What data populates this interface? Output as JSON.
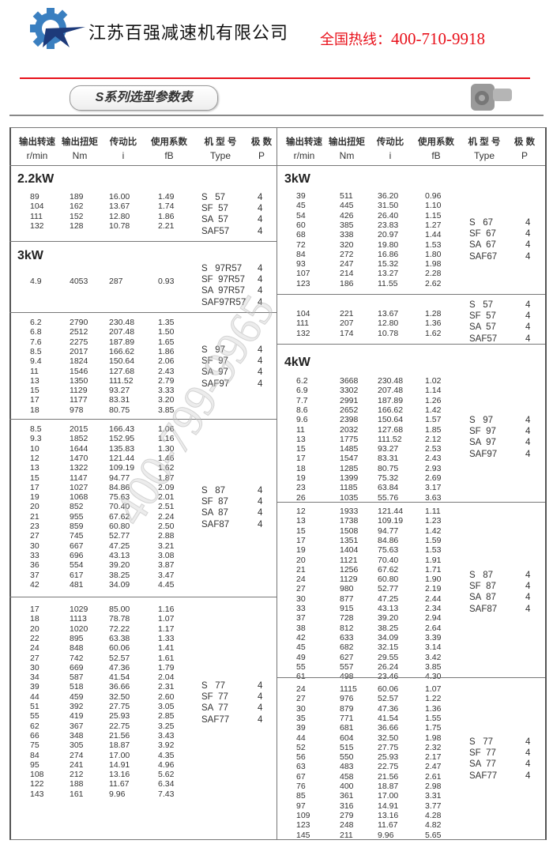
{
  "header": {
    "company_name": "江苏百强减速机有限公司",
    "hotline_label": "全国热线：",
    "hotline_number": "400-710-9918",
    "accent_color": "#e8101a",
    "logo_color": "#3a7fc0"
  },
  "title": "S系列选型参数表",
  "watermark": "400-799-9965",
  "columns": {
    "cn": [
      "输出转速",
      "输出扭矩",
      "传动比",
      "使用系数",
      "机 型 号",
      "极 数"
    ],
    "en": [
      "r/min",
      "Nm",
      "i",
      "fB",
      "Type",
      "P"
    ]
  },
  "left_sections": [
    {
      "power": "2.2kW",
      "rows": [
        [
          "89",
          "189",
          "16.00",
          "1.49"
        ],
        [
          "104",
          "162",
          "13.67",
          "1.74"
        ],
        [
          "111",
          "152",
          "12.80",
          "1.86"
        ],
        [
          "132",
          "128",
          "10.78",
          "2.21"
        ]
      ],
      "types": [
        [
          "S   57",
          "4"
        ],
        [
          "SF  57",
          "4"
        ],
        [
          "SA  57",
          "4"
        ],
        [
          "SAF57",
          "4"
        ]
      ]
    },
    {
      "power": "3kW",
      "rows": [
        [
          "4.9",
          "4053",
          "287",
          "0.93"
        ]
      ],
      "types": [
        [
          "S   97R57",
          "4"
        ],
        [
          "SF  97R57",
          "4"
        ],
        [
          "SA  97R57",
          "4"
        ],
        [
          "SAF97R57",
          "4"
        ]
      ]
    },
    {
      "power": "",
      "rows": [
        [
          "6.2",
          "2790",
          "230.48",
          "1.35"
        ],
        [
          "6.8",
          "2512",
          "207.48",
          "1.50"
        ],
        [
          "7.6",
          "2275",
          "187.89",
          "1.65"
        ],
        [
          "8.5",
          "2017",
          "166.62",
          "1.86"
        ],
        [
          "9.4",
          "1824",
          "150.64",
          "2.06"
        ],
        [
          "11",
          "1546",
          "127.68",
          "2.43"
        ],
        [
          "13",
          "1350",
          "111.52",
          "2.79"
        ],
        [
          "15",
          "1129",
          "93.27",
          "3.33"
        ],
        [
          "17",
          "1177",
          "83.31",
          "3.20"
        ],
        [
          "18",
          "978",
          "80.75",
          "3.85"
        ]
      ],
      "types": [
        [
          "S   97",
          "4"
        ],
        [
          "SF  97",
          "4"
        ],
        [
          "SA  97",
          "4"
        ],
        [
          "SAF97",
          "4"
        ]
      ]
    },
    {
      "power": "",
      "rows": [
        [
          "8.5",
          "2015",
          "166.43",
          "1.06"
        ],
        [
          "9.3",
          "1852",
          "152.95",
          "1.16"
        ],
        [
          "10",
          "1644",
          "135.83",
          "1.30"
        ],
        [
          "12",
          "1470",
          "121.44",
          "1.46"
        ],
        [
          "13",
          "1322",
          "109.19",
          "1.62"
        ],
        [
          "15",
          "1147",
          "94.77",
          "1.87"
        ],
        [
          "17",
          "1027",
          "84.86",
          "2.09"
        ],
        [
          "19",
          "1068",
          "75.63",
          "2.01"
        ],
        [
          "20",
          "852",
          "70.40",
          "2.51"
        ],
        [
          "21",
          "955",
          "67.62",
          "2.24"
        ],
        [
          "23",
          "859",
          "60.80",
          "2.50"
        ],
        [
          "27",
          "745",
          "52.77",
          "2.88"
        ],
        [
          "30",
          "667",
          "47.25",
          "3.21"
        ],
        [
          "33",
          "696",
          "43.13",
          "3.08"
        ],
        [
          "36",
          "554",
          "39.20",
          "3.87"
        ],
        [
          "37",
          "617",
          "38.25",
          "3.47"
        ],
        [
          "42",
          "481",
          "34.09",
          "4.45"
        ]
      ],
      "types": [
        [
          "S   87",
          "4"
        ],
        [
          "SF  87",
          "4"
        ],
        [
          "SA  87",
          "4"
        ],
        [
          "SAF87",
          "4"
        ]
      ]
    },
    {
      "power": "",
      "rows": [
        [
          "17",
          "1029",
          "85.00",
          "1.16"
        ],
        [
          "18",
          "1113",
          "78.78",
          "1.07"
        ],
        [
          "20",
          "1020",
          "72.22",
          "1.17"
        ],
        [
          "22",
          "895",
          "63.38",
          "1.33"
        ],
        [
          "24",
          "848",
          "60.06",
          "1.41"
        ],
        [
          "27",
          "742",
          "52.57",
          "1.61"
        ],
        [
          "30",
          "669",
          "47.36",
          "1.79"
        ],
        [
          "34",
          "587",
          "41.54",
          "2.04"
        ],
        [
          "39",
          "518",
          "36.66",
          "2.31"
        ],
        [
          "44",
          "459",
          "32.50",
          "2.60"
        ],
        [
          "51",
          "392",
          "27.75",
          "3.05"
        ],
        [
          "55",
          "419",
          "25.93",
          "2.85"
        ],
        [
          "62",
          "367",
          "22.75",
          "3.25"
        ],
        [
          "66",
          "348",
          "21.56",
          "3.43"
        ],
        [
          "75",
          "305",
          "18.87",
          "3.92"
        ],
        [
          "84",
          "274",
          "17.00",
          "4.35"
        ],
        [
          "95",
          "241",
          "14.91",
          "4.96"
        ],
        [
          "108",
          "212",
          "13.16",
          "5.62"
        ],
        [
          "122",
          "188",
          "11.67",
          "6.34"
        ],
        [
          "143",
          "161",
          "9.96",
          "7.43"
        ]
      ],
      "types": [
        [
          "S   77",
          "4"
        ],
        [
          "SF  77",
          "4"
        ],
        [
          "SA  77",
          "4"
        ],
        [
          "SAF77",
          "4"
        ]
      ]
    }
  ],
  "right_sections": [
    {
      "power": "3kW",
      "rows": [
        [
          "39",
          "511",
          "36.20",
          "0.96"
        ],
        [
          "45",
          "445",
          "31.50",
          "1.10"
        ],
        [
          "54",
          "426",
          "26.40",
          "1.15"
        ],
        [
          "60",
          "385",
          "23.83",
          "1.27"
        ],
        [
          "68",
          "338",
          "20.97",
          "1.44"
        ],
        [
          "72",
          "320",
          "19.80",
          "1.53"
        ],
        [
          "84",
          "272",
          "16.86",
          "1.80"
        ],
        [
          "93",
          "247",
          "15.32",
          "1.98"
        ],
        [
          "107",
          "214",
          "13.27",
          "2.28"
        ],
        [
          "123",
          "186",
          "11.55",
          "2.62"
        ]
      ],
      "types": [
        [
          "S   67",
          "4"
        ],
        [
          "SF  67",
          "4"
        ],
        [
          "SA  67",
          "4"
        ],
        [
          "SAF67",
          "4"
        ]
      ]
    },
    {
      "power": "",
      "rows": [
        [
          "104",
          "221",
          "13.67",
          "1.28"
        ],
        [
          "111",
          "207",
          "12.80",
          "1.36"
        ],
        [
          "132",
          "174",
          "10.78",
          "1.62"
        ]
      ],
      "types": [
        [
          "S   57",
          "4"
        ],
        [
          "SF  57",
          "4"
        ],
        [
          "SA  57",
          "4"
        ],
        [
          "SAF57",
          "4"
        ]
      ]
    },
    {
      "power": "4kW",
      "rows": [
        [
          "6.2",
          "3668",
          "230.48",
          "1.02"
        ],
        [
          "6.9",
          "3302",
          "207.48",
          "1.14"
        ],
        [
          "7.7",
          "2991",
          "187.89",
          "1.26"
        ],
        [
          "8.6",
          "2652",
          "166.62",
          "1.42"
        ],
        [
          "9.6",
          "2398",
          "150.64",
          "1.57"
        ],
        [
          "11",
          "2032",
          "127.68",
          "1.85"
        ],
        [
          "13",
          "1775",
          "111.52",
          "2.12"
        ],
        [
          "15",
          "1485",
          "93.27",
          "2.53"
        ],
        [
          "17",
          "1547",
          "83.31",
          "2.43"
        ],
        [
          "18",
          "1285",
          "80.75",
          "2.93"
        ],
        [
          "19",
          "1399",
          "75.32",
          "2.69"
        ],
        [
          "23",
          "1185",
          "63.84",
          "3.17"
        ],
        [
          "26",
          "1035",
          "55.76",
          "3.63"
        ]
      ],
      "types": [
        [
          "S   97",
          "4"
        ],
        [
          "SF  97",
          "4"
        ],
        [
          "SA  97",
          "4"
        ],
        [
          "SAF97",
          "4"
        ]
      ]
    },
    {
      "power": "",
      "rows": [
        [
          "12",
          "1933",
          "121.44",
          "1.11"
        ],
        [
          "13",
          "1738",
          "109.19",
          "1.23"
        ],
        [
          "15",
          "1508",
          "94.77",
          "1.42"
        ],
        [
          "17",
          "1351",
          "84.86",
          "1.59"
        ],
        [
          "19",
          "1404",
          "75.63",
          "1.53"
        ],
        [
          "20",
          "1121",
          "70.40",
          "1.91"
        ],
        [
          "21",
          "1256",
          "67.62",
          "1.71"
        ],
        [
          "24",
          "1129",
          "60.80",
          "1.90"
        ],
        [
          "27",
          "980",
          "52.77",
          "2.19"
        ],
        [
          "30",
          "877",
          "47.25",
          "2.44"
        ],
        [
          "33",
          "915",
          "43.13",
          "2.34"
        ],
        [
          "37",
          "728",
          "39.20",
          "2.94"
        ],
        [
          "38",
          "812",
          "38.25",
          "2.64"
        ],
        [
          "42",
          "633",
          "34.09",
          "3.39"
        ],
        [
          "45",
          "682",
          "32.15",
          "3.14"
        ],
        [
          "49",
          "627",
          "29.55",
          "3.42"
        ],
        [
          "55",
          "557",
          "26.24",
          "3.85"
        ],
        [
          "61",
          "498",
          "23.46",
          "4.30"
        ]
      ],
      "types": [
        [
          "S   87",
          "4"
        ],
        [
          "SF  87",
          "4"
        ],
        [
          "SA  87",
          "4"
        ],
        [
          "SAF87",
          "4"
        ]
      ]
    },
    {
      "power": "",
      "rows": [
        [
          "24",
          "1115",
          "60.06",
          "1.07"
        ],
        [
          "27",
          "976",
          "52.57",
          "1.22"
        ],
        [
          "30",
          "879",
          "47.36",
          "1.36"
        ],
        [
          "35",
          "771",
          "41.54",
          "1.55"
        ],
        [
          "39",
          "681",
          "36.66",
          "1.75"
        ],
        [
          "44",
          "604",
          "32.50",
          "1.98"
        ],
        [
          "52",
          "515",
          "27.75",
          "2.32"
        ],
        [
          "56",
          "550",
          "25.93",
          "2.17"
        ],
        [
          "63",
          "483",
          "22.75",
          "2.47"
        ],
        [
          "67",
          "458",
          "21.56",
          "2.61"
        ],
        [
          "76",
          "400",
          "18.87",
          "2.98"
        ],
        [
          "85",
          "361",
          "17.00",
          "3.31"
        ],
        [
          "97",
          "316",
          "14.91",
          "3.77"
        ],
        [
          "109",
          "279",
          "13.16",
          "4.28"
        ],
        [
          "123",
          "248",
          "11.67",
          "4.82"
        ],
        [
          "145",
          "211",
          "9.96",
          "5.65"
        ]
      ],
      "types": [
        [
          "S   77",
          "4"
        ],
        [
          "SF  77",
          "4"
        ],
        [
          "SA  77",
          "4"
        ],
        [
          "SAF77",
          "4"
        ]
      ]
    }
  ]
}
